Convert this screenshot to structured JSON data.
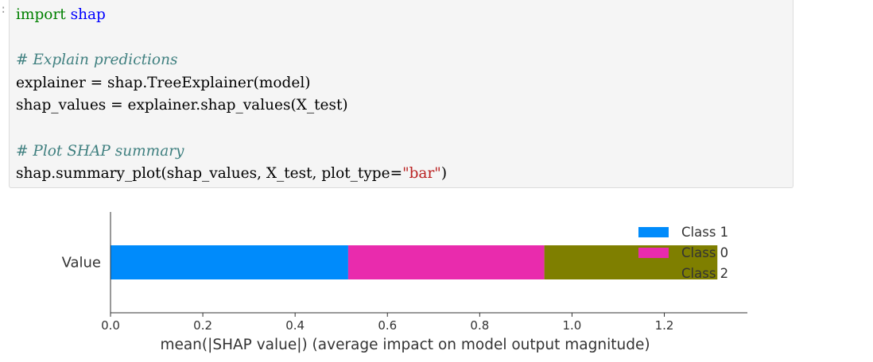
{
  "prompt_marker": ":",
  "code": {
    "line1": {
      "kw": "import",
      "mod": "shap"
    },
    "line3": {
      "comment": "# Explain predictions"
    },
    "line4": {
      "text": "explainer = shap.TreeExplainer(model)"
    },
    "line5": {
      "text": "shap_values = explainer.shap_values(X_test)"
    },
    "line7": {
      "comment": "# Plot SHAP summary"
    },
    "line8": {
      "pre": "shap.summary_plot(shap_values, X_test, plot_type=",
      "str": "\"bar\"",
      "post": ")"
    }
  },
  "chart_data": {
    "type": "bar",
    "orientation": "horizontal",
    "stacked": true,
    "categories": [
      "Value"
    ],
    "series": [
      {
        "name": "Class 1",
        "values": [
          0.515
        ],
        "color": "#008bfb"
      },
      {
        "name": "Class 0",
        "values": [
          0.425
        ],
        "color": "#e92bad"
      },
      {
        "name": "Class 2",
        "values": [
          0.375
        ],
        "color": "#7f7f00"
      }
    ],
    "xlabel": "mean(|SHAP value|) (average impact on model output magnitude)",
    "ylabel": "",
    "xlim": [
      0.0,
      1.38
    ],
    "xticks": [
      0.0,
      0.2,
      0.4,
      0.6,
      0.8,
      1.0,
      1.2
    ],
    "xtick_labels": [
      "0.0",
      "0.2",
      "0.4",
      "0.6",
      "0.8",
      "1.0",
      "1.2"
    ],
    "legend": {
      "placement": "top-right",
      "entries": [
        "Class 1",
        "Class 0",
        "Class 2"
      ]
    },
    "grid": false
  }
}
